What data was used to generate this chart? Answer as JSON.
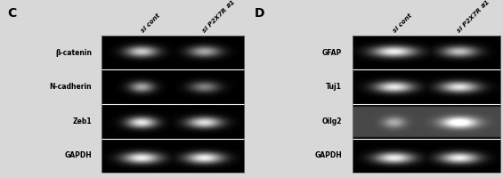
{
  "figure_bg": "#d8d8d8",
  "panel_C": {
    "label": "C",
    "col_labels": [
      "si cont",
      "si P2X7R #1"
    ],
    "bands": [
      {
        "gene": "β-catenin",
        "col1": 0.8,
        "col2": 0.65,
        "col1w": 0.45,
        "col2w": 0.45,
        "bg": 0.0
      },
      {
        "gene": "N-cadherin",
        "col1": 0.65,
        "col2": 0.5,
        "col1w": 0.35,
        "col2w": 0.42,
        "bg": 0.0
      },
      {
        "gene": "Zeb1",
        "col1": 0.92,
        "col2": 0.88,
        "col1w": 0.42,
        "col2w": 0.48,
        "bg": 0.0
      },
      {
        "gene": "GAPDH",
        "col1": 0.95,
        "col2": 0.95,
        "col1w": 0.52,
        "col2w": 0.52,
        "bg": 0.0
      }
    ]
  },
  "panel_D": {
    "label": "D",
    "col_labels": [
      "si cont",
      "si P2X7R #1"
    ],
    "bands": [
      {
        "gene": "GFAP",
        "col1": 0.95,
        "col2": 0.75,
        "col1w": 0.58,
        "col2w": 0.48,
        "bg": 0.0
      },
      {
        "gene": "Tuj1",
        "col1": 0.92,
        "col2": 0.9,
        "col1w": 0.52,
        "col2w": 0.52,
        "bg": 0.0
      },
      {
        "gene": "Oilg2",
        "col1": 0.4,
        "col2": 0.88,
        "col1w": 0.3,
        "col2w": 0.48,
        "bg": 0.28
      },
      {
        "gene": "GAPDH",
        "col1": 0.95,
        "col2": 0.95,
        "col1w": 0.52,
        "col2w": 0.52,
        "bg": 0.0
      }
    ]
  }
}
